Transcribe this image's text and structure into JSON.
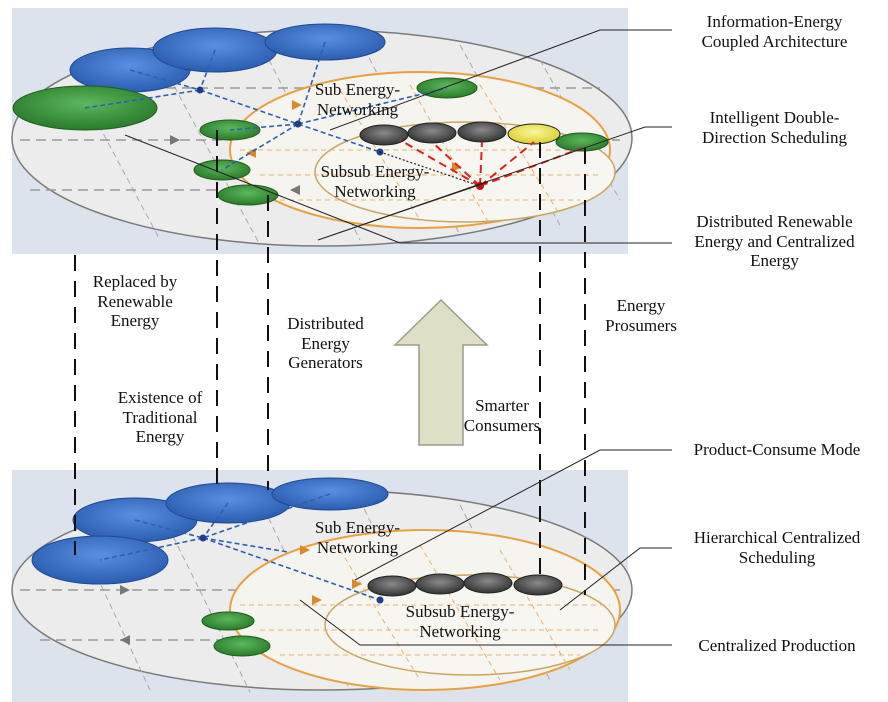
{
  "labels": {
    "info_energy_arch": "Information-Energy\nCoupled Architecture",
    "intelligent_scheduling": "Intelligent Double-\nDirection Scheduling",
    "distributed_renewable": "Distributed Renewable\nEnergy and Centralized\nEnergy",
    "energy_prosumers": "Energy\nProsumers",
    "product_consume_mode": "Product-Consume Mode",
    "hierarchical_scheduling": "Hierarchical Centralized\nScheduling",
    "centralized_production": "Centralized Production",
    "replaced_by_renewable": "Replaced by\nRenewable\nEnergy",
    "distributed_generators": "Distributed\nEnergy\nGenerators",
    "existence_traditional": "Existence of\nTraditional\nEnergy",
    "smarter_consumers": "Smarter\nConsumers",
    "sub_energy_top": "Sub Energy-\nNetworking",
    "subsub_energy_top": "Subsub Energy-\nNetworking",
    "sub_energy_bottom": "Sub Energy-\nNetworking",
    "subsub_energy_bottom": "Subsub Energy-\nNetworking"
  },
  "colors": {
    "panel_bg": "#dde3ec",
    "plane_fill": "#ebebeb",
    "plane_edge": "#777777",
    "orange_ring": "#e8a040",
    "blue_node": "#3f74c6",
    "green_node": "#3e9a3e",
    "gray_node": "#4a4a4a",
    "yellow_node": "#f1ea5a",
    "red_link": "#e02020",
    "arrow_fill": "#dedfc6",
    "arrow_edge": "#9a9b8a"
  }
}
